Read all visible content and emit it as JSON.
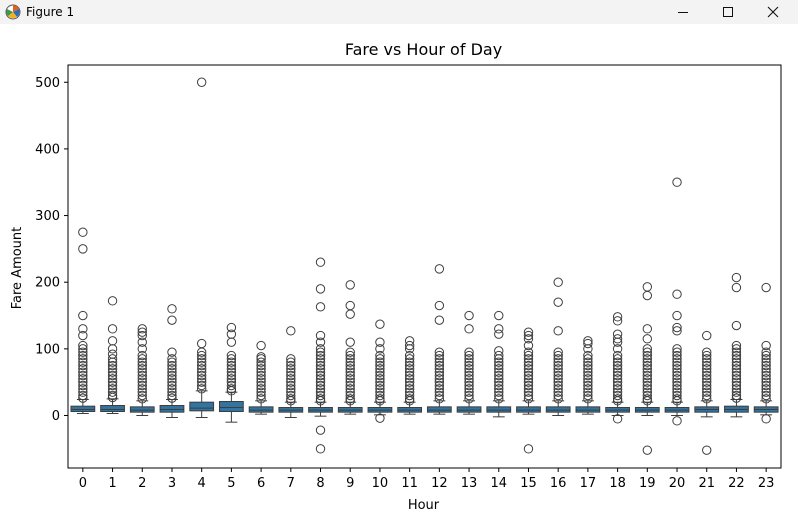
{
  "window": {
    "title": "Figure 1"
  },
  "chart_data": {
    "type": "box",
    "title": "Fare vs Hour of Day",
    "xlabel": "Hour",
    "ylabel": "Fare Amount",
    "ylim": [
      -70,
      525
    ],
    "yticks": [
      0,
      100,
      200,
      300,
      400,
      500
    ],
    "grid": false,
    "color": "#3274a1",
    "categories": [
      "0",
      "1",
      "2",
      "3",
      "4",
      "5",
      "6",
      "7",
      "8",
      "9",
      "10",
      "11",
      "12",
      "13",
      "14",
      "15",
      "16",
      "17",
      "18",
      "19",
      "20",
      "21",
      "22",
      "23"
    ],
    "boxes": [
      {
        "q1": 6,
        "median": 9,
        "q3": 14,
        "low": 3,
        "high": 24,
        "outliers": [
          275,
          250,
          150,
          130,
          120,
          105,
          100,
          95,
          90,
          85,
          80,
          75,
          70,
          65,
          60,
          55,
          50,
          45,
          40,
          35,
          30,
          26
        ]
      },
      {
        "q1": 6,
        "median": 9,
        "q3": 15,
        "low": 3,
        "high": 25,
        "outliers": [
          172,
          130,
          112,
          100,
          92,
          85,
          80,
          75,
          70,
          65,
          60,
          55,
          50,
          45,
          40,
          35,
          30,
          27
        ]
      },
      {
        "q1": 5,
        "median": 8,
        "q3": 13,
        "low": 0,
        "high": 22,
        "outliers": [
          130,
          125,
          120,
          110,
          100,
          90,
          85,
          80,
          75,
          70,
          65,
          60,
          55,
          50,
          45,
          40,
          35,
          30,
          25
        ]
      },
      {
        "q1": 5,
        "median": 9,
        "q3": 15,
        "low": -3,
        "high": 24,
        "outliers": [
          160,
          143,
          95,
          85,
          80,
          75,
          70,
          65,
          60,
          55,
          50,
          45,
          40,
          35,
          30,
          26
        ]
      },
      {
        "q1": 7,
        "median": 11,
        "q3": 20,
        "low": -3,
        "high": 37,
        "outliers": [
          500,
          108,
          95,
          90,
          85,
          80,
          75,
          70,
          65,
          60,
          55,
          50,
          45,
          40
        ]
      },
      {
        "q1": 6,
        "median": 12,
        "q3": 21,
        "low": -10,
        "high": 35,
        "outliers": [
          132,
          122,
          110,
          90,
          85,
          80,
          75,
          70,
          65,
          60,
          55,
          50,
          45,
          40,
          37
        ]
      },
      {
        "q1": 5,
        "median": 8,
        "q3": 13,
        "low": 2,
        "high": 22,
        "outliers": [
          105,
          88,
          85,
          80,
          75,
          70,
          65,
          60,
          55,
          50,
          45,
          40,
          35,
          30,
          25
        ]
      },
      {
        "q1": 5,
        "median": 8,
        "q3": 12,
        "low": -3,
        "high": 20,
        "outliers": [
          127,
          85,
          80,
          75,
          70,
          65,
          60,
          55,
          50,
          45,
          40,
          35,
          30,
          25,
          22
        ]
      },
      {
        "q1": 5,
        "median": 8,
        "q3": 12,
        "low": -1,
        "high": 20,
        "outliers": [
          230,
          190,
          163,
          120,
          110,
          100,
          95,
          90,
          85,
          80,
          75,
          70,
          65,
          60,
          55,
          50,
          45,
          40,
          35,
          30,
          25,
          22,
          -22,
          -50
        ]
      },
      {
        "q1": 5,
        "median": 8,
        "q3": 12,
        "low": 2,
        "high": 20,
        "outliers": [
          196,
          165,
          152,
          110,
          95,
          90,
          85,
          80,
          75,
          70,
          65,
          60,
          55,
          50,
          45,
          40,
          35,
          30,
          25,
          22
        ]
      },
      {
        "q1": 5,
        "median": 8,
        "q3": 12,
        "low": 1,
        "high": 20,
        "outliers": [
          137,
          110,
          100,
          90,
          85,
          80,
          75,
          70,
          65,
          60,
          55,
          50,
          45,
          40,
          35,
          30,
          25,
          22,
          -4
        ]
      },
      {
        "q1": 5,
        "median": 8,
        "q3": 12,
        "low": 2,
        "high": 20,
        "outliers": [
          112,
          105,
          100,
          90,
          85,
          80,
          75,
          70,
          65,
          60,
          55,
          50,
          45,
          40,
          35,
          30,
          25,
          22
        ]
      },
      {
        "q1": 5,
        "median": 8,
        "q3": 13,
        "low": 2,
        "high": 22,
        "outliers": [
          220,
          165,
          143,
          95,
          90,
          85,
          80,
          75,
          70,
          65,
          60,
          55,
          50,
          45,
          40,
          35,
          30,
          25
        ]
      },
      {
        "q1": 5,
        "median": 8,
        "q3": 13,
        "low": 2,
        "high": 22,
        "outliers": [
          150,
          130,
          95,
          90,
          85,
          80,
          75,
          70,
          65,
          60,
          55,
          50,
          45,
          40,
          35,
          30,
          25
        ]
      },
      {
        "q1": 5,
        "median": 8,
        "q3": 13,
        "low": -2,
        "high": 22,
        "outliers": [
          150,
          130,
          122,
          97,
          90,
          85,
          80,
          75,
          70,
          65,
          60,
          55,
          50,
          45,
          40,
          35,
          30,
          25
        ]
      },
      {
        "q1": 5,
        "median": 8,
        "q3": 13,
        "low": 2,
        "high": 22,
        "outliers": [
          125,
          120,
          115,
          105,
          95,
          90,
          85,
          80,
          75,
          70,
          65,
          60,
          55,
          50,
          45,
          40,
          35,
          30,
          25,
          -50
        ]
      },
      {
        "q1": 5,
        "median": 8,
        "q3": 13,
        "low": 0,
        "high": 22,
        "outliers": [
          200,
          170,
          127,
          95,
          90,
          85,
          80,
          75,
          70,
          65,
          60,
          55,
          50,
          45,
          40,
          35,
          30,
          25
        ]
      },
      {
        "q1": 5,
        "median": 8,
        "q3": 13,
        "low": 2,
        "high": 22,
        "outliers": [
          112,
          108,
          100,
          90,
          85,
          80,
          75,
          70,
          65,
          60,
          55,
          50,
          45,
          40,
          35,
          30,
          25
        ]
      },
      {
        "q1": 5,
        "median": 8,
        "q3": 12,
        "low": 0,
        "high": 20,
        "outliers": [
          148,
          142,
          122,
          115,
          110,
          100,
          90,
          85,
          80,
          75,
          70,
          65,
          60,
          55,
          50,
          45,
          40,
          35,
          30,
          25,
          22,
          -5
        ]
      },
      {
        "q1": 5,
        "median": 8,
        "q3": 12,
        "low": 0,
        "high": 20,
        "outliers": [
          193,
          180,
          130,
          115,
          100,
          95,
          90,
          85,
          80,
          75,
          70,
          65,
          60,
          55,
          50,
          45,
          40,
          35,
          30,
          25,
          22,
          -52
        ]
      },
      {
        "q1": 5,
        "median": 8,
        "q3": 12,
        "low": 0,
        "high": 20,
        "outliers": [
          350,
          182,
          150,
          132,
          127,
          100,
          95,
          90,
          85,
          80,
          75,
          70,
          65,
          60,
          55,
          50,
          45,
          40,
          35,
          30,
          25,
          22,
          -8
        ]
      },
      {
        "q1": 5,
        "median": 9,
        "q3": 13,
        "low": -2,
        "high": 22,
        "outliers": [
          120,
          95,
          90,
          85,
          80,
          75,
          70,
          65,
          60,
          55,
          50,
          45,
          40,
          35,
          30,
          25,
          -52
        ]
      },
      {
        "q1": 5,
        "median": 9,
        "q3": 14,
        "low": -2,
        "high": 24,
        "outliers": [
          207,
          192,
          135,
          105,
          100,
          95,
          90,
          85,
          80,
          75,
          70,
          65,
          60,
          55,
          50,
          45,
          40,
          35,
          30,
          26
        ]
      },
      {
        "q1": 5,
        "median": 9,
        "q3": 13,
        "low": 1,
        "high": 22,
        "outliers": [
          192,
          105,
          95,
          90,
          85,
          80,
          75,
          70,
          65,
          60,
          55,
          50,
          45,
          40,
          35,
          30,
          25,
          -5
        ]
      }
    ]
  }
}
